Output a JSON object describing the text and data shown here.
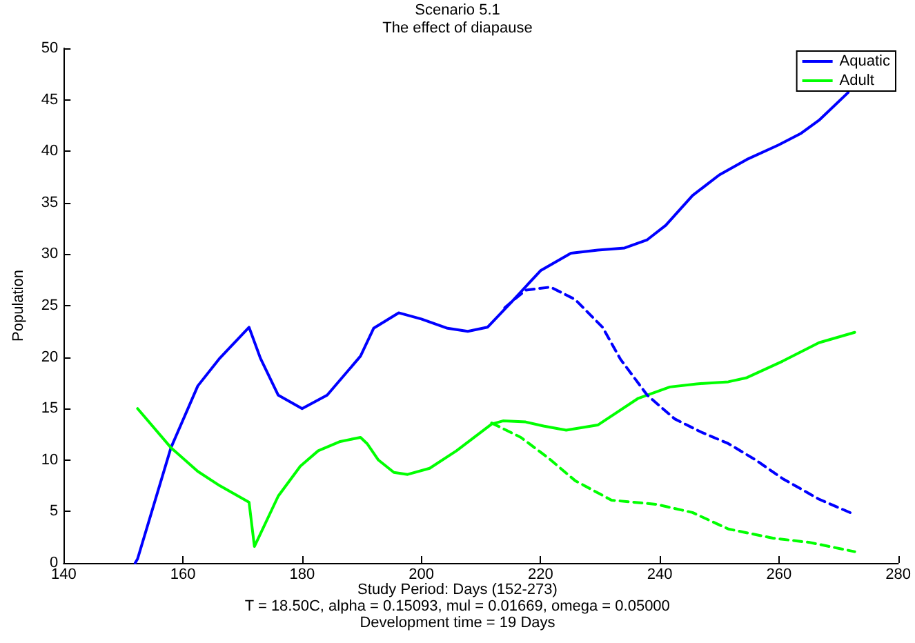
{
  "chart_data": {
    "type": "line",
    "title": "Scenario 5.1",
    "subtitle": "The effect of diapause",
    "xlabel": "Study Period: Days (152-273)",
    "ylabel": "Population",
    "annotations": [
      "T = 18.50C, alpha = 0.15093, mul = 0.01669, omega = 0.05000",
      "Development time = 19 Days"
    ],
    "xlim": [
      140,
      280
    ],
    "xticks": [
      140,
      160,
      180,
      200,
      220,
      240,
      260,
      280
    ],
    "ylim": [
      0,
      50
    ],
    "yticks": [
      0,
      5,
      10,
      15,
      20,
      25,
      30,
      35,
      40,
      45,
      50
    ],
    "grid": false,
    "legend": "top right",
    "marker": "none",
    "series": [
      {
        "name": "Aquatic",
        "color": "#0000ff",
        "line_style": "solid",
        "x": [
          152,
          152.4,
          158,
          162.5,
          166.2,
          171.1,
          173,
          176,
          180,
          184.2,
          189.8,
          192,
          196.2,
          200,
          204.4,
          207.8,
          211.1,
          215.2,
          220,
          225.1,
          229.6,
          234.1,
          237.9,
          241,
          245.5,
          250,
          254.6,
          259.9,
          263.6,
          266.7,
          271.6
        ],
        "values": [
          0,
          0.4,
          11.2,
          17.2,
          19.9,
          22.9,
          19.9,
          16.3,
          15.0,
          16.3,
          20.1,
          22.8,
          24.3,
          23.7,
          22.8,
          22.5,
          22.9,
          25.4,
          28.4,
          30.1,
          30.4,
          30.6,
          31.4,
          32.8,
          35.7,
          37.7,
          39.2,
          40.6,
          41.7,
          43.0,
          45.7
        ]
      },
      {
        "name": "Adult",
        "color": "#00ff00",
        "line_style": "solid",
        "x": [
          152.4,
          158,
          162.5,
          166.2,
          171.1,
          172,
          176,
          179.7,
          182.7,
          186.4,
          189.8,
          190.9,
          192.8,
          195.4,
          197.7,
          201.4,
          205.9,
          211.8,
          213.7,
          217.5,
          220.5,
          224.3,
          229.6,
          236.4,
          241.7,
          246.2,
          251.5,
          254.6,
          260.6,
          266.7,
          272.7
        ],
        "values": [
          15.0,
          11.2,
          8.9,
          7.5,
          5.9,
          1.6,
          6.5,
          9.4,
          10.9,
          11.8,
          12.2,
          11.6,
          10.0,
          8.8,
          8.6,
          9.2,
          10.9,
          13.5,
          13.8,
          13.7,
          13.3,
          12.9,
          13.4,
          16.0,
          17.1,
          17.4,
          17.6,
          18.0,
          19.6,
          21.4,
          22.4
        ]
      },
      {
        "color": "#0000ff",
        "line_style": "dashed",
        "x": [
          214,
          215.2,
          217.5,
          221.7,
          225.8,
          230.4,
          233.4,
          237.9,
          242.5,
          247,
          251.5,
          256.1,
          260.6,
          266.7,
          272.7
        ],
        "values": [
          24.8,
          25.4,
          26.5,
          26.8,
          25.6,
          22.9,
          19.8,
          16.3,
          14.0,
          12.7,
          11.6,
          10.0,
          8.2,
          6.2,
          4.7
        ]
      },
      {
        "color": "#00ff00",
        "line_style": "dashed",
        "x": [
          211.8,
          216.7,
          221.3,
          225.8,
          231.9,
          239.4,
          245.5,
          251.5,
          259.1,
          265.1,
          272.7
        ],
        "values": [
          13.6,
          12.2,
          10.2,
          8.0,
          6.1,
          5.7,
          4.9,
          3.3,
          2.4,
          2.0,
          1.1
        ]
      }
    ]
  }
}
